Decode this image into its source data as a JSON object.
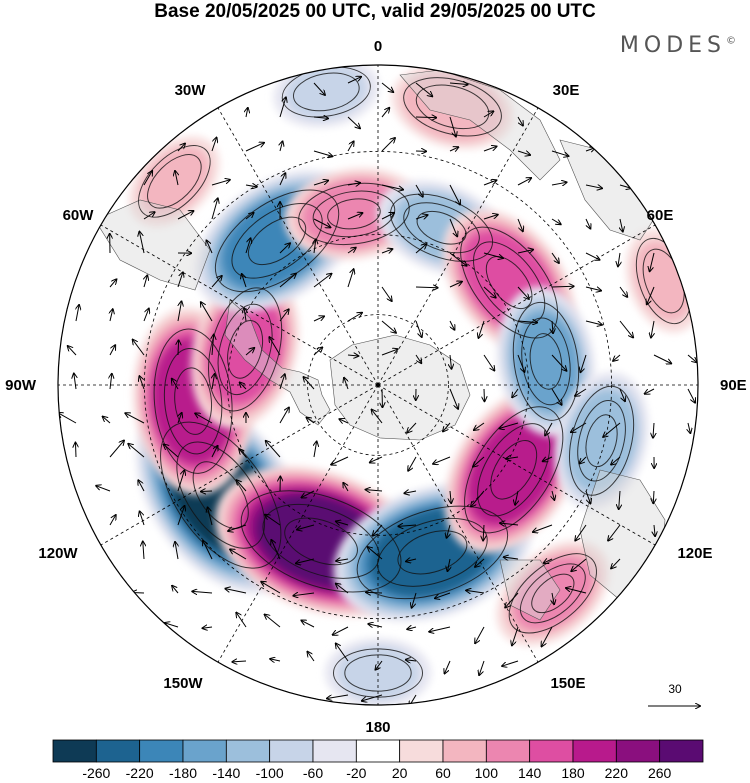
{
  "title": "Base 20/05/2025 00 UTC, valid 29/05/2025 00 UTC",
  "logo": {
    "text": "MODES",
    "mark": "©"
  },
  "longitude_labels": [
    {
      "id": "0",
      "text": "0"
    },
    {
      "id": "30E",
      "text": "30E"
    },
    {
      "id": "60E",
      "text": "60E"
    },
    {
      "id": "90E",
      "text": "90E"
    },
    {
      "id": "120E",
      "text": "120E"
    },
    {
      "id": "150E",
      "text": "150E"
    },
    {
      "id": "180",
      "text": "180"
    },
    {
      "id": "150W",
      "text": "150W"
    },
    {
      "id": "120W",
      "text": "120W"
    },
    {
      "id": "90W",
      "text": "90W"
    },
    {
      "id": "60W",
      "text": "60W"
    },
    {
      "id": "30W",
      "text": "30W"
    }
  ],
  "reference_vector": {
    "label": "30"
  },
  "colorbar": {
    "ticks": [
      "-260",
      "-220",
      "-180",
      "-140",
      "-100",
      "-60",
      "-20",
      "20",
      "60",
      "100",
      "140",
      "180",
      "220",
      "260"
    ],
    "colors": [
      "#0e3a55",
      "#1d6390",
      "#3c86b8",
      "#6aa3cc",
      "#9cbfdc",
      "#c7d4e8",
      "#e6e6f1",
      "#ffffff",
      "#f7dcdc",
      "#f3b6c0",
      "#ec86b0",
      "#de4ea2",
      "#b81a8c",
      "#8a0f7e",
      "#5a0b72"
    ]
  },
  "anomaly_centers": [
    {
      "sign": "neg",
      "value": -270,
      "lon": -125,
      "r": 0.6
    },
    {
      "sign": "pos",
      "value": 270,
      "lon": -160,
      "r": 0.52
    },
    {
      "sign": "neg",
      "value": -240,
      "lon": 162,
      "r": 0.55
    },
    {
      "sign": "pos",
      "value": 200,
      "lon": 122,
      "r": 0.5
    },
    {
      "sign": "pos",
      "value": 210,
      "lon": -95,
      "r": 0.58
    },
    {
      "sign": "pos",
      "value": 160,
      "lon": -75,
      "r": 0.43
    },
    {
      "sign": "neg",
      "value": -200,
      "lon": -35,
      "r": 0.55
    },
    {
      "sign": "pos",
      "value": 120,
      "lon": -8,
      "r": 0.54
    },
    {
      "sign": "neg",
      "value": -110,
      "lon": 22,
      "r": 0.53
    },
    {
      "sign": "pos",
      "value": 170,
      "lon": 52,
      "r": 0.52
    },
    {
      "sign": "neg",
      "value": -140,
      "lon": 82,
      "r": 0.53
    },
    {
      "sign": "neg",
      "value": -120,
      "lon": 104,
      "r": 0.72
    },
    {
      "sign": "pos",
      "value": 90,
      "lon": 15,
      "r": 0.9
    },
    {
      "sign": "neg",
      "value": -60,
      "lon": -10,
      "r": 0.93
    },
    {
      "sign": "pos",
      "value": 100,
      "lon": 140,
      "r": 0.85
    },
    {
      "sign": "pos",
      "value": 60,
      "lon": -45,
      "r": 0.9
    },
    {
      "sign": "neg",
      "value": -60,
      "lon": -180,
      "r": 0.9
    },
    {
      "sign": "pos",
      "value": 60,
      "lon": 70,
      "r": 0.95
    }
  ]
}
